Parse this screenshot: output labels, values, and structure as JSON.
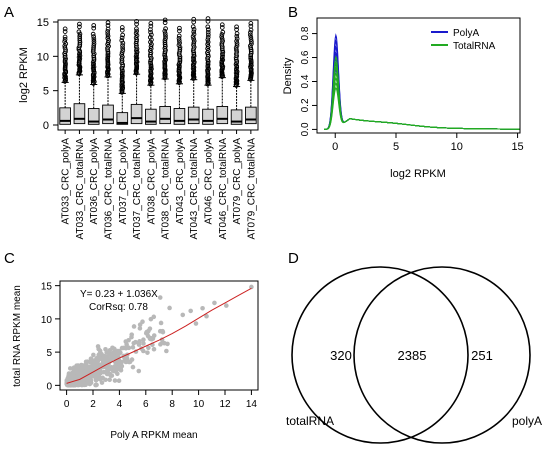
{
  "panels": {
    "a": "A",
    "b": "B",
    "c": "C",
    "d": "D"
  },
  "colors": {
    "polya": "#1a1acc",
    "totalrna": "#22aa22",
    "box_fill": "#d3d3d3",
    "scatter_points": "#b8b8b8",
    "fit_line": "#cc2222"
  },
  "chart_data": [
    {
      "id": "a",
      "type": "box",
      "title": "",
      "ylabel": "log2 RPKM",
      "ylim": [
        0,
        15
      ],
      "yticks": [
        0,
        5,
        10,
        15
      ],
      "categories": [
        "AT033_CRC_polyA",
        "AT033_CRC_totalRNA",
        "AT036_CRC_polyA",
        "AT036_CRC_totalRNA",
        "AT037_CRC_polyA",
        "AT037_CRC_totalRNA",
        "AT038_CRC_polyA",
        "AT038_CRC_totalRNA",
        "AT043_CRC_polyA",
        "AT043_CRC_totalRNA",
        "AT046_CRC_polyA",
        "AT046_CRC_totalRNA",
        "AT079_CRC_polyA",
        "AT079_CRC_totalRNA"
      ],
      "boxes": [
        {
          "min": 0,
          "q1": 0.1,
          "median": 0.6,
          "q3": 2.5,
          "whisker_high": 6.2,
          "max": 14.0
        },
        {
          "min": 0,
          "q1": 0.2,
          "median": 0.9,
          "q3": 3.1,
          "whisker_high": 7.3,
          "max": 14.7
        },
        {
          "min": 0,
          "q1": 0.1,
          "median": 0.5,
          "q3": 2.4,
          "whisker_high": 5.9,
          "max": 14.5
        },
        {
          "min": 0,
          "q1": 0.2,
          "median": 0.8,
          "q3": 2.9,
          "whisker_high": 7.0,
          "max": 14.9
        },
        {
          "min": 0,
          "q1": 0.1,
          "median": 0.3,
          "q3": 1.8,
          "whisker_high": 4.6,
          "max": 14.2
        },
        {
          "min": 0,
          "q1": 0.2,
          "median": 1.0,
          "q3": 3.0,
          "whisker_high": 7.4,
          "max": 15.1
        },
        {
          "min": 0,
          "q1": 0.1,
          "median": 0.5,
          "q3": 2.3,
          "whisker_high": 5.8,
          "max": 14.8
        },
        {
          "min": 0,
          "q1": 0.2,
          "median": 0.9,
          "q3": 2.7,
          "whisker_high": 6.7,
          "max": 15.3
        },
        {
          "min": 0,
          "q1": 0.1,
          "median": 0.6,
          "q3": 2.4,
          "whisker_high": 6.0,
          "max": 14.1
        },
        {
          "min": 0,
          "q1": 0.2,
          "median": 0.8,
          "q3": 2.6,
          "whisker_high": 6.6,
          "max": 15.4
        },
        {
          "min": 0,
          "q1": 0.1,
          "median": 0.6,
          "q3": 2.3,
          "whisker_high": 5.8,
          "max": 15.5
        },
        {
          "min": 0,
          "q1": 0.2,
          "median": 0.9,
          "q3": 2.7,
          "whisker_high": 6.9,
          "max": 14.6
        },
        {
          "min": 0,
          "q1": 0.1,
          "median": 0.5,
          "q3": 2.2,
          "whisker_high": 5.6,
          "max": 14.3
        },
        {
          "min": 0,
          "q1": 0.2,
          "median": 0.8,
          "q3": 2.6,
          "whisker_high": 6.5,
          "max": 14.8
        }
      ]
    },
    {
      "id": "b",
      "type": "line",
      "title": "",
      "xlabel": "log2 RPKM",
      "ylabel": "Density",
      "xlim": [
        -1.5,
        15.2
      ],
      "ylim": [
        -0.03,
        0.93
      ],
      "xticks": [
        0,
        5,
        10,
        15
      ],
      "yticks": [
        0.0,
        0.2,
        0.4,
        0.6,
        0.8
      ],
      "ytick_labels": [
        "0.0",
        "0.2",
        "0.4",
        "0.6",
        "0.8"
      ],
      "grid": false,
      "legend": "top-right",
      "legend_entries": [
        {
          "label": "PolyA",
          "color_key": "polya"
        },
        {
          "label": "TotalRNA",
          "color_key": "totalrna"
        }
      ],
      "series": [
        {
          "group": "polya",
          "peak": 0.84
        },
        {
          "group": "polya",
          "peak": 0.79
        },
        {
          "group": "polya",
          "peak": 0.74
        },
        {
          "group": "polya",
          "peak": 0.69
        },
        {
          "group": "polya",
          "peak": 0.64
        },
        {
          "group": "polya",
          "peak": 0.6
        },
        {
          "group": "polya",
          "peak": 0.55
        },
        {
          "group": "totalrna",
          "peak": 0.66
        },
        {
          "group": "totalrna",
          "peak": 0.61
        },
        {
          "group": "totalrna",
          "peak": 0.57
        },
        {
          "group": "totalrna",
          "peak": 0.52
        },
        {
          "group": "totalrna",
          "peak": 0.48
        },
        {
          "group": "totalrna",
          "peak": 0.44
        },
        {
          "group": "totalrna",
          "peak": 0.4
        }
      ]
    },
    {
      "id": "c",
      "type": "scatter",
      "title": "",
      "xlabel": "Poly A RPKM mean",
      "ylabel": "total RNA RPKM mean",
      "xlim": [
        -0.5,
        14.5
      ],
      "ylim": [
        -0.7,
        15.7
      ],
      "xticks": [
        0,
        2,
        4,
        6,
        8,
        10,
        12,
        14
      ],
      "yticks": [
        0,
        5,
        10,
        15
      ],
      "annotations": [
        "Y= 0.23 + 1.036X",
        "CorRsq: 0.78"
      ],
      "fit": {
        "intercept": 0.23,
        "slope": 1.036
      },
      "fit_curve": [
        [
          0,
          0.3
        ],
        [
          1,
          0.9
        ],
        [
          2,
          2.0
        ],
        [
          3,
          3.1
        ],
        [
          4,
          4.1
        ],
        [
          5,
          5.0
        ],
        [
          6,
          5.9
        ],
        [
          7,
          6.8
        ],
        [
          8,
          7.8
        ],
        [
          9,
          8.9
        ],
        [
          10,
          10.1
        ],
        [
          11,
          11.3
        ],
        [
          12,
          12.4
        ],
        [
          13,
          13.5
        ],
        [
          14,
          14.6
        ]
      ],
      "outliers": [
        [
          14,
          14.8
        ],
        [
          10.3,
          11.6
        ],
        [
          11.2,
          12.4
        ],
        [
          9.4,
          11.2
        ],
        [
          10.6,
          10.4
        ],
        [
          12.1,
          12.0
        ],
        [
          8.8,
          10.6
        ],
        [
          9.8,
          9.3
        ]
      ]
    },
    {
      "id": "d",
      "type": "venn",
      "sets": [
        {
          "label": "totalRNA",
          "only": "320"
        },
        {
          "label": "polyA",
          "only": "251"
        }
      ],
      "intersection": "2385"
    }
  ]
}
